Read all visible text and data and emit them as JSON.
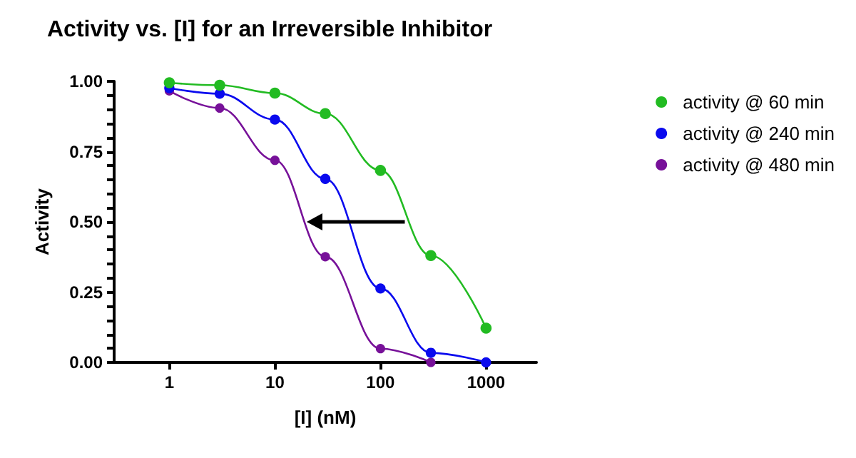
{
  "chart_data": {
    "type": "line",
    "title": "Activity vs. [I] for an Irreversible Inhibitor",
    "xlabel": "[I] (nM)",
    "ylabel": "Activity",
    "x": [
      1,
      3,
      10,
      30,
      100,
      300,
      1000
    ],
    "series": [
      {
        "name": "activity @ 60 min",
        "color": "#22bb22",
        "values": [
          0.995,
          0.986,
          0.958,
          0.885,
          0.683,
          0.38,
          0.122
        ]
      },
      {
        "name": "activity @ 240 min",
        "color": "#0a0aee",
        "values": [
          0.976,
          0.956,
          0.864,
          0.653,
          0.263,
          0.034,
          0.0
        ]
      },
      {
        "name": "activity @ 480 min",
        "color": "#771199",
        "values": [
          0.966,
          0.905,
          0.719,
          0.376,
          0.049,
          0.0,
          null
        ]
      }
    ],
    "log": "x",
    "xlim": [
      0.3,
      3000
    ],
    "xticks": [
      1,
      10,
      100,
      1000
    ],
    "ylim": [
      0,
      1
    ],
    "yticks": [
      {
        "value": 0,
        "label": "0.00"
      },
      {
        "value": 0.05,
        "label": null
      },
      {
        "value": 0.1,
        "label": null
      },
      {
        "value": 0.15,
        "label": null
      },
      {
        "value": 0.2,
        "label": null
      },
      {
        "value": 0.25,
        "label": "0.25"
      },
      {
        "value": 0.3,
        "label": null
      },
      {
        "value": 0.35,
        "label": null
      },
      {
        "value": 0.4,
        "label": null
      },
      {
        "value": 0.45,
        "label": null
      },
      {
        "value": 0.5,
        "label": "0.50"
      },
      {
        "value": 0.55,
        "label": null
      },
      {
        "value": 0.6,
        "label": null
      },
      {
        "value": 0.65,
        "label": null
      },
      {
        "value": 0.7,
        "label": null
      },
      {
        "value": 0.75,
        "label": "0.75"
      },
      {
        "value": 0.8,
        "label": null
      },
      {
        "value": 0.85,
        "label": null
      },
      {
        "value": 0.9,
        "label": null
      },
      {
        "value": 0.95,
        "label": null
      },
      {
        "value": 1,
        "label": "1.00"
      }
    ],
    "grid": false,
    "legend": "right",
    "marker": "circle",
    "line_style": "solid"
  }
}
